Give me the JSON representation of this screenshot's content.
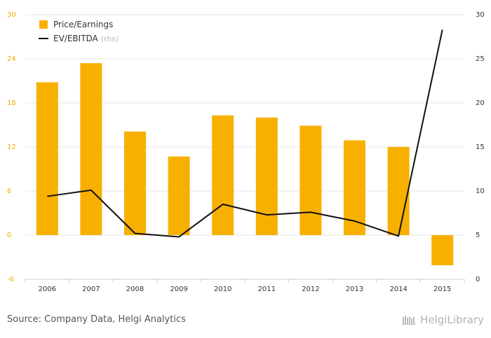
{
  "chart_data": {
    "type": "bar",
    "categories": [
      "2006",
      "2007",
      "2008",
      "2009",
      "2010",
      "2011",
      "2012",
      "2013",
      "2014",
      "2015"
    ],
    "series": [
      {
        "name": "Price/Earnings",
        "type": "bar",
        "axis": "left",
        "color": "#f8b000",
        "values": [
          20.8,
          23.4,
          14.1,
          10.7,
          16.3,
          16.0,
          14.9,
          12.9,
          12.0,
          -4.1
        ]
      },
      {
        "name": "EV/EBITDA",
        "legend_note": "(rhs)",
        "type": "line",
        "axis": "right",
        "color": "#111111",
        "values": [
          9.4,
          10.1,
          5.2,
          4.8,
          8.5,
          7.3,
          7.6,
          6.6,
          4.9,
          28.3
        ]
      }
    ],
    "y_left": {
      "ylim": [
        -6,
        30
      ],
      "ticks": [
        "-6",
        "0",
        "6",
        "12",
        "18",
        "24",
        "30"
      ],
      "color": "#f2ab00"
    },
    "y_right": {
      "ylim": [
        0,
        30
      ],
      "ticks": [
        "0",
        "5",
        "10",
        "15",
        "20",
        "25",
        "30"
      ]
    },
    "grid": true,
    "legend_position": "top-left"
  },
  "footer": {
    "source": "Source: Company Data, Helgi Analytics",
    "logo_text": "HelgiLibrary"
  }
}
